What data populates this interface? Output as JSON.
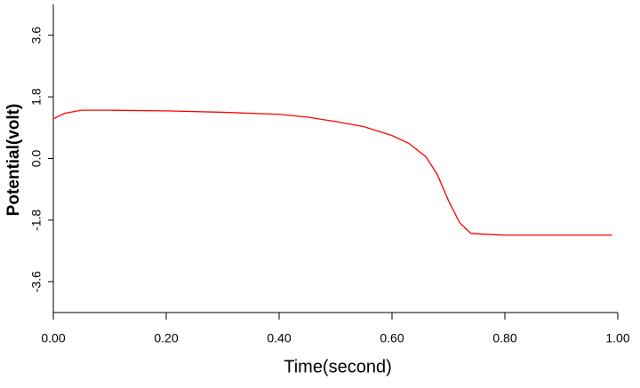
{
  "chart_data": {
    "type": "line",
    "x_label": "Time(second)",
    "y_label": "Potential(volt)",
    "x": [
      0,
      0.02,
      0.05,
      0.1,
      0.2,
      0.3,
      0.4,
      0.45,
      0.5,
      0.55,
      0.6,
      0.63,
      0.66,
      0.68,
      0.7,
      0.72,
      0.74,
      0.76,
      0.8,
      0.9,
      0.99
    ],
    "series": [
      {
        "name": "Potential",
        "color": "#ff0000",
        "values": [
          1.16,
          1.32,
          1.41,
          1.41,
          1.39,
          1.35,
          1.29,
          1.21,
          1.08,
          0.93,
          0.67,
          0.44,
          0.05,
          -0.46,
          -1.23,
          -1.88,
          -2.19,
          -2.21,
          -2.24,
          -2.24,
          -2.24
        ]
      }
    ],
    "xlim": [
      0,
      1
    ],
    "xticks": [
      {
        "value": 0,
        "label": "0.00"
      },
      {
        "value": 0.2,
        "label": "0.20"
      },
      {
        "value": 0.4,
        "label": "0.40"
      },
      {
        "value": 0.6,
        "label": "0.60"
      },
      {
        "value": 0.8,
        "label": "0.80"
      },
      {
        "value": 1,
        "label": "1.00"
      }
    ],
    "ylim": [
      -4.5,
      4.5
    ],
    "yticks": [
      -3.6,
      -1.8,
      {
        "value": 0,
        "label": "0.0"
      },
      1.8,
      3.6
    ],
    "grid": false
  }
}
